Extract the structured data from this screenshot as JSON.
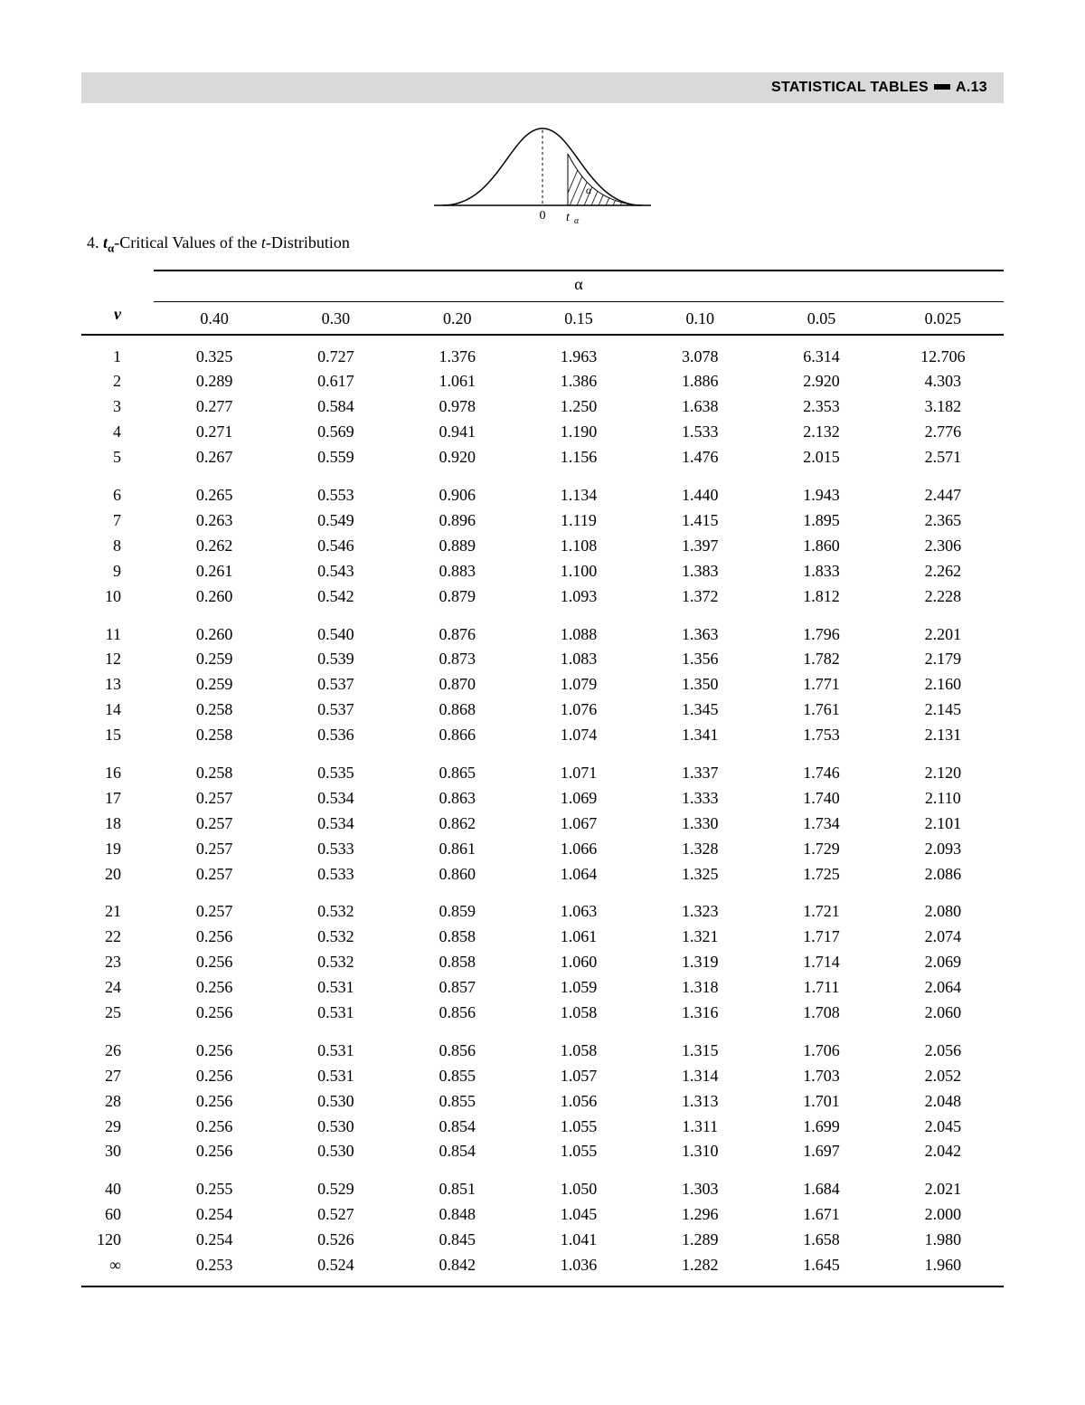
{
  "header": {
    "title_left": "STATISTICAL TABLES",
    "title_right": "A.13"
  },
  "caption": {
    "number": "4.",
    "symbol_main": "t",
    "symbol_sub": "α",
    "text_after": "-Critical Values of the ",
    "italic_t": "t",
    "text_tail": "-Distribution"
  },
  "table": {
    "alpha_label": "α",
    "nu_label": "v",
    "columns": [
      "0.40",
      "0.30",
      "0.20",
      "0.15",
      "0.10",
      "0.05",
      "0.025"
    ],
    "groups": [
      [
        {
          "nu": "1",
          "vals": [
            "0.325",
            "0.727",
            "1.376",
            "1.963",
            "3.078",
            "6.314",
            "12.706"
          ]
        },
        {
          "nu": "2",
          "vals": [
            "0.289",
            "0.617",
            "1.061",
            "1.386",
            "1.886",
            "2.920",
            "4.303"
          ]
        },
        {
          "nu": "3",
          "vals": [
            "0.277",
            "0.584",
            "0.978",
            "1.250",
            "1.638",
            "2.353",
            "3.182"
          ]
        },
        {
          "nu": "4",
          "vals": [
            "0.271",
            "0.569",
            "0.941",
            "1.190",
            "1.533",
            "2.132",
            "2.776"
          ]
        },
        {
          "nu": "5",
          "vals": [
            "0.267",
            "0.559",
            "0.920",
            "1.156",
            "1.476",
            "2.015",
            "2.571"
          ]
        }
      ],
      [
        {
          "nu": "6",
          "vals": [
            "0.265",
            "0.553",
            "0.906",
            "1.134",
            "1.440",
            "1.943",
            "2.447"
          ]
        },
        {
          "nu": "7",
          "vals": [
            "0.263",
            "0.549",
            "0.896",
            "1.119",
            "1.415",
            "1.895",
            "2.365"
          ]
        },
        {
          "nu": "8",
          "vals": [
            "0.262",
            "0.546",
            "0.889",
            "1.108",
            "1.397",
            "1.860",
            "2.306"
          ]
        },
        {
          "nu": "9",
          "vals": [
            "0.261",
            "0.543",
            "0.883",
            "1.100",
            "1.383",
            "1.833",
            "2.262"
          ]
        },
        {
          "nu": "10",
          "vals": [
            "0.260",
            "0.542",
            "0.879",
            "1.093",
            "1.372",
            "1.812",
            "2.228"
          ]
        }
      ],
      [
        {
          "nu": "11",
          "vals": [
            "0.260",
            "0.540",
            "0.876",
            "1.088",
            "1.363",
            "1.796",
            "2.201"
          ]
        },
        {
          "nu": "12",
          "vals": [
            "0.259",
            "0.539",
            "0.873",
            "1.083",
            "1.356",
            "1.782",
            "2.179"
          ]
        },
        {
          "nu": "13",
          "vals": [
            "0.259",
            "0.537",
            "0.870",
            "1.079",
            "1.350",
            "1.771",
            "2.160"
          ]
        },
        {
          "nu": "14",
          "vals": [
            "0.258",
            "0.537",
            "0.868",
            "1.076",
            "1.345",
            "1.761",
            "2.145"
          ]
        },
        {
          "nu": "15",
          "vals": [
            "0.258",
            "0.536",
            "0.866",
            "1.074",
            "1.341",
            "1.753",
            "2.131"
          ]
        }
      ],
      [
        {
          "nu": "16",
          "vals": [
            "0.258",
            "0.535",
            "0.865",
            "1.071",
            "1.337",
            "1.746",
            "2.120"
          ]
        },
        {
          "nu": "17",
          "vals": [
            "0.257",
            "0.534",
            "0.863",
            "1.069",
            "1.333",
            "1.740",
            "2.110"
          ]
        },
        {
          "nu": "18",
          "vals": [
            "0.257",
            "0.534",
            "0.862",
            "1.067",
            "1.330",
            "1.734",
            "2.101"
          ]
        },
        {
          "nu": "19",
          "vals": [
            "0.257",
            "0.533",
            "0.861",
            "1.066",
            "1.328",
            "1.729",
            "2.093"
          ]
        },
        {
          "nu": "20",
          "vals": [
            "0.257",
            "0.533",
            "0.860",
            "1.064",
            "1.325",
            "1.725",
            "2.086"
          ]
        }
      ],
      [
        {
          "nu": "21",
          "vals": [
            "0.257",
            "0.532",
            "0.859",
            "1.063",
            "1.323",
            "1.721",
            "2.080"
          ]
        },
        {
          "nu": "22",
          "vals": [
            "0.256",
            "0.532",
            "0.858",
            "1.061",
            "1.321",
            "1.717",
            "2.074"
          ]
        },
        {
          "nu": "23",
          "vals": [
            "0.256",
            "0.532",
            "0.858",
            "1.060",
            "1.319",
            "1.714",
            "2.069"
          ]
        },
        {
          "nu": "24",
          "vals": [
            "0.256",
            "0.531",
            "0.857",
            "1.059",
            "1.318",
            "1.711",
            "2.064"
          ]
        },
        {
          "nu": "25",
          "vals": [
            "0.256",
            "0.531",
            "0.856",
            "1.058",
            "1.316",
            "1.708",
            "2.060"
          ]
        }
      ],
      [
        {
          "nu": "26",
          "vals": [
            "0.256",
            "0.531",
            "0.856",
            "1.058",
            "1.315",
            "1.706",
            "2.056"
          ]
        },
        {
          "nu": "27",
          "vals": [
            "0.256",
            "0.531",
            "0.855",
            "1.057",
            "1.314",
            "1.703",
            "2.052"
          ]
        },
        {
          "nu": "28",
          "vals": [
            "0.256",
            "0.530",
            "0.855",
            "1.056",
            "1.313",
            "1.701",
            "2.048"
          ]
        },
        {
          "nu": "29",
          "vals": [
            "0.256",
            "0.530",
            "0.854",
            "1.055",
            "1.311",
            "1.699",
            "2.045"
          ]
        },
        {
          "nu": "30",
          "vals": [
            "0.256",
            "0.530",
            "0.854",
            "1.055",
            "1.310",
            "1.697",
            "2.042"
          ]
        }
      ],
      [
        {
          "nu": "40",
          "vals": [
            "0.255",
            "0.529",
            "0.851",
            "1.050",
            "1.303",
            "1.684",
            "2.021"
          ]
        },
        {
          "nu": "60",
          "vals": [
            "0.254",
            "0.527",
            "0.848",
            "1.045",
            "1.296",
            "1.671",
            "2.000"
          ]
        },
        {
          "nu": "120",
          "vals": [
            "0.254",
            "0.526",
            "0.845",
            "1.041",
            "1.289",
            "1.658",
            "1.980"
          ]
        },
        {
          "nu": "∞",
          "vals": [
            "0.253",
            "0.524",
            "0.842",
            "1.036",
            "1.282",
            "1.645",
            "1.960"
          ]
        }
      ]
    ]
  },
  "figure": {
    "zero_label": "0",
    "t_label": "t",
    "t_sub": "α",
    "alpha_label": "α",
    "stroke": "#000000",
    "dash": "3,3"
  }
}
